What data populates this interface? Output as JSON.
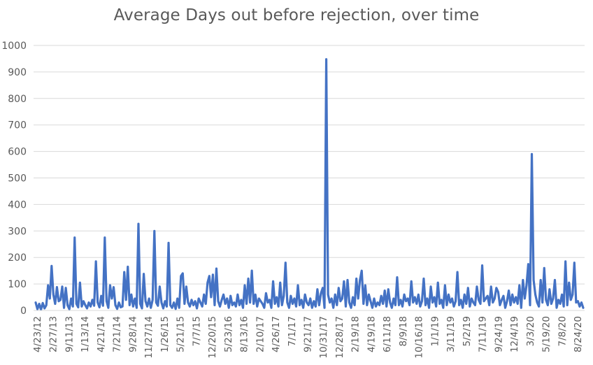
{
  "chart_data": {
    "type": "line",
    "title": "Average Days out before rejection, over time",
    "xlabel": "",
    "ylabel": "",
    "ylim": [
      0,
      1000
    ],
    "yticks": [
      0,
      100,
      200,
      300,
      400,
      500,
      600,
      700,
      800,
      900,
      1000
    ],
    "xtick_labels": [
      "4/23/12",
      "2/27/13",
      "9/11/13",
      "1/13/14",
      "4/21/14",
      "7/21/14",
      "9/28/14",
      "11/27/14",
      "1/26/15",
      "5/21/15",
      "7/7/15",
      "12/20/15",
      "5/23/16",
      "8/13/16",
      "2/10/17",
      "4/26/17",
      "7/1/17",
      "9/21/17",
      "10/31/17",
      "12/28/17",
      "2/19/18",
      "4/19/18",
      "6/11/18",
      "8/9/18",
      "10/16/18",
      "1/1/19",
      "3/11/19",
      "5/2/19",
      "7/11/19",
      "9/24/19",
      "12/4/19",
      "3/3/20",
      "5/19/20",
      "7/8/20",
      "8/24/20"
    ],
    "grid": "horizontal",
    "legend": "none",
    "line_color": "#4472C4",
    "series": [
      {
        "values": [
          30,
          5,
          25,
          3,
          28,
          8,
          20,
          95,
          45,
          168,
          60,
          25,
          88,
          35,
          40,
          90,
          10,
          85,
          20,
          5,
          45,
          15,
          275,
          25,
          12,
          105,
          15,
          35,
          20,
          8,
          30,
          15,
          40,
          18,
          185,
          30,
          12,
          55,
          18,
          275,
          35,
          10,
          95,
          45,
          88,
          20,
          6,
          30,
          12,
          15,
          145,
          40,
          165,
          20,
          60,
          15,
          45,
          10,
          327,
          25,
          8,
          138,
          35,
          15,
          45,
          10,
          40,
          300,
          30,
          18,
          90,
          30,
          8,
          35,
          15,
          255,
          20,
          10,
          30,
          6,
          45,
          10,
          130,
          140,
          25,
          90,
          30,
          15,
          40,
          20,
          35,
          8,
          45,
          30,
          15,
          60,
          25,
          105,
          130,
          50,
          135,
          20,
          158,
          35,
          15,
          40,
          60,
          25,
          45,
          10,
          55,
          20,
          30,
          15,
          60,
          20,
          40,
          10,
          95,
          25,
          120,
          30,
          150,
          25,
          60,
          15,
          45,
          35,
          25,
          10,
          65,
          30,
          40,
          10,
          110,
          25,
          50,
          15,
          105,
          20,
          55,
          180,
          30,
          10,
          55,
          25,
          45,
          15,
          95,
          20,
          40,
          10,
          60,
          30,
          20,
          45,
          10,
          35,
          15,
          80,
          20,
          65,
          85,
          10,
          948,
          60,
          30,
          45,
          10,
          60,
          20,
          85,
          35,
          45,
          110,
          15,
          115,
          30,
          10,
          50,
          20,
          120,
          45,
          115,
          150,
          25,
          95,
          20,
          60,
          35,
          10,
          45,
          15,
          30,
          20,
          55,
          25,
          75,
          15,
          80,
          30,
          10,
          45,
          20,
          125,
          20,
          40,
          15,
          60,
          35,
          45,
          20,
          110,
          30,
          50,
          25,
          60,
          15,
          35,
          120,
          20,
          45,
          10,
          90,
          30,
          50,
          15,
          105,
          25,
          40,
          10,
          95,
          20,
          60,
          30,
          45,
          15,
          35,
          145,
          20,
          40,
          10,
          60,
          25,
          85,
          15,
          45,
          30,
          20,
          90,
          40,
          25,
          170,
          35,
          45,
          55,
          20,
          90,
          30,
          45,
          85,
          70,
          20,
          40,
          55,
          10,
          35,
          75,
          20,
          60,
          30,
          50,
          25,
          95,
          10,
          115,
          45,
          95,
          175,
          20,
          590,
          115,
          60,
          30,
          15,
          115,
          30,
          160,
          40,
          20,
          80,
          25,
          45,
          115,
          10,
          40,
          25,
          60,
          15,
          185,
          20,
          105,
          40,
          60,
          180,
          30,
          35,
          15,
          30,
          10
        ]
      }
    ]
  }
}
